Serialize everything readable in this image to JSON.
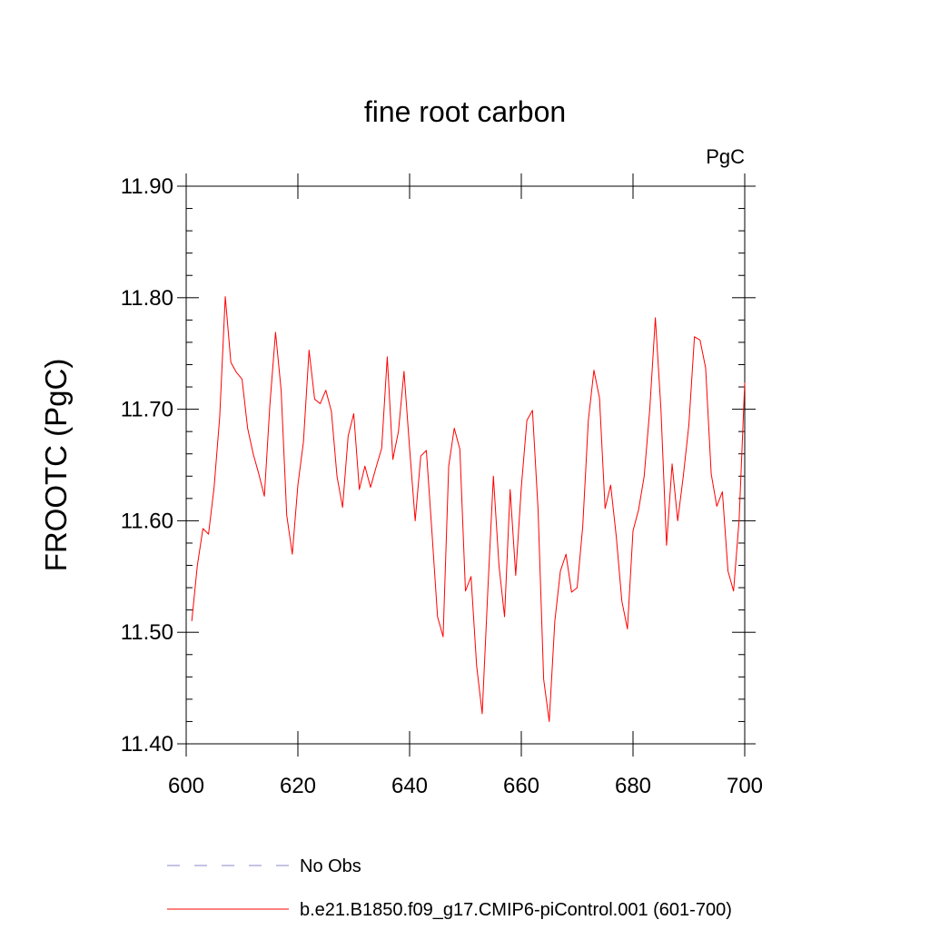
{
  "chart_data": {
    "type": "line",
    "title": "fine root carbon",
    "units_label": "PgC",
    "ylabel": "FROOTC  (PgC)",
    "xlabel": "",
    "xlim": [
      600,
      700
    ],
    "ylim": [
      11.4,
      11.9
    ],
    "x_ticks": [
      600,
      620,
      640,
      660,
      680,
      700
    ],
    "x_tick_labels": [
      "600",
      "620",
      "640",
      "660",
      "680",
      "700"
    ],
    "y_ticks": [
      11.4,
      11.5,
      11.6,
      11.7,
      11.8,
      11.9
    ],
    "y_tick_labels": [
      "11.40",
      "11.50",
      "11.60",
      "11.70",
      "11.80",
      "11.90"
    ],
    "grid": false,
    "legend_position": "bottom",
    "series": [
      {
        "name": "No Obs",
        "color": "#8888cc",
        "style": "dashed",
        "x": [],
        "values": []
      },
      {
        "name": "b.e21.B1850.f09_g17.CMIP6-piControl.001 (601-700)",
        "color": "#ff0000",
        "style": "solid",
        "x": [
          601,
          602,
          603,
          604,
          605,
          606,
          607,
          608,
          609,
          610,
          611,
          612,
          613,
          614,
          615,
          616,
          617,
          618,
          619,
          620,
          621,
          622,
          623,
          624,
          625,
          626,
          627,
          628,
          629,
          630,
          631,
          632,
          633,
          634,
          635,
          636,
          637,
          638,
          639,
          640,
          641,
          642,
          643,
          644,
          645,
          646,
          647,
          648,
          649,
          650,
          651,
          652,
          653,
          654,
          655,
          656,
          657,
          658,
          659,
          660,
          661,
          662,
          663,
          664,
          665,
          666,
          667,
          668,
          669,
          670,
          671,
          672,
          673,
          674,
          675,
          676,
          677,
          678,
          679,
          680,
          681,
          682,
          683,
          684,
          685,
          686,
          687,
          688,
          689,
          690,
          691,
          692,
          693,
          694,
          695,
          696,
          697,
          698,
          699,
          700
        ],
        "values": [
          11.51,
          11.56,
          11.593,
          11.588,
          11.63,
          11.693,
          11.801,
          11.742,
          11.733,
          11.727,
          11.683,
          11.66,
          11.642,
          11.622,
          11.705,
          11.769,
          11.717,
          11.605,
          11.57,
          11.632,
          11.671,
          11.753,
          11.709,
          11.705,
          11.717,
          11.698,
          11.64,
          11.612,
          11.676,
          11.696,
          11.628,
          11.649,
          11.63,
          11.648,
          11.665,
          11.747,
          11.655,
          11.68,
          11.734,
          11.665,
          11.6,
          11.658,
          11.663,
          11.59,
          11.514,
          11.496,
          11.649,
          11.683,
          11.664,
          11.537,
          11.55,
          11.47,
          11.427,
          11.537,
          11.64,
          11.56,
          11.514,
          11.628,
          11.551,
          11.63,
          11.69,
          11.699,
          11.61,
          11.458,
          11.42,
          11.51,
          11.555,
          11.57,
          11.536,
          11.54,
          11.595,
          11.69,
          11.735,
          11.71,
          11.611,
          11.632,
          11.586,
          11.528,
          11.503,
          11.591,
          11.61,
          11.64,
          11.7,
          11.782,
          11.7,
          11.578,
          11.651,
          11.6,
          11.64,
          11.686,
          11.765,
          11.762,
          11.737,
          11.642,
          11.613,
          11.626,
          11.555,
          11.537,
          11.601,
          11.724
        ]
      }
    ]
  }
}
